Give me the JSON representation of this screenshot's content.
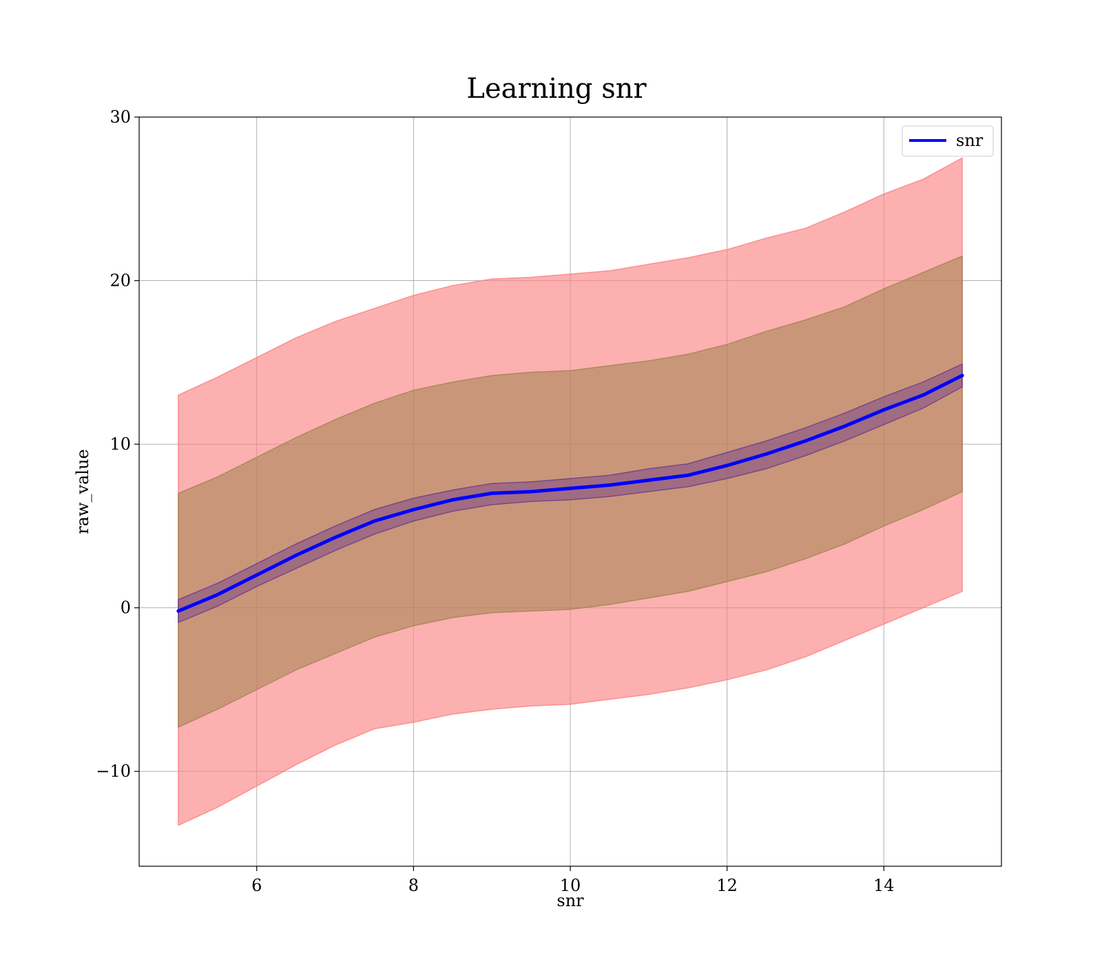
{
  "chart_data": {
    "type": "line",
    "title": "Learning snr",
    "xlabel": "snr",
    "ylabel": "raw_value",
    "xlim": [
      4.5,
      15.5
    ],
    "ylim": [
      -15.8,
      30
    ],
    "xticks": [
      6,
      8,
      10,
      12,
      14
    ],
    "yticks": [
      -10,
      0,
      10,
      20,
      30
    ],
    "xtick_labels": [
      "6",
      "8",
      "10",
      "12",
      "14"
    ],
    "ytick_labels": [
      "−10",
      "0",
      "10",
      "20",
      "30"
    ],
    "grid": true,
    "legend": {
      "location": "top-right",
      "entries": [
        "snr"
      ]
    },
    "x": [
      5,
      5.5,
      6,
      6.5,
      7,
      7.5,
      8,
      8.5,
      9,
      9.5,
      10,
      10.5,
      11,
      11.5,
      12,
      12.5,
      13,
      13.5,
      14,
      14.5,
      15
    ],
    "series": [
      {
        "name": "snr",
        "color": "#0000ff",
        "values": [
          -0.2,
          0.8,
          2.0,
          3.2,
          4.3,
          5.3,
          6.0,
          6.6,
          7.0,
          7.1,
          7.3,
          7.5,
          7.8,
          8.1,
          8.7,
          9.4,
          10.2,
          11.1,
          12.1,
          13.0,
          14.2
        ]
      }
    ],
    "bands": [
      {
        "color": "#fa8080",
        "lower": [
          -13.3,
          -12.2,
          -10.9,
          -9.6,
          -8.4,
          -7.4,
          -7.0,
          -6.5,
          -6.2,
          -6.0,
          -5.9,
          -5.6,
          -5.3,
          -4.9,
          -4.4,
          -3.8,
          -3.0,
          -2.0,
          -1.0,
          0.0,
          1.0
        ],
        "upper": [
          13.0,
          14.1,
          15.3,
          16.5,
          17.5,
          18.3,
          19.1,
          19.7,
          20.1,
          20.2,
          20.4,
          20.6,
          21.0,
          21.4,
          21.9,
          22.6,
          23.2,
          24.2,
          25.3,
          26.2,
          27.5
        ]
      },
      {
        "color": "#a0824e",
        "lower": [
          -7.3,
          -6.2,
          -5.0,
          -3.8,
          -2.8,
          -1.8,
          -1.1,
          -0.6,
          -0.3,
          -0.2,
          -0.1,
          0.2,
          0.6,
          1.0,
          1.6,
          2.2,
          3.0,
          3.9,
          5.0,
          6.0,
          7.1
        ],
        "upper": [
          7.0,
          8.0,
          9.2,
          10.4,
          11.5,
          12.5,
          13.3,
          13.8,
          14.2,
          14.4,
          14.5,
          14.8,
          15.1,
          15.5,
          16.1,
          16.9,
          17.6,
          18.4,
          19.5,
          20.5,
          21.5
        ]
      },
      {
        "color": "#6a3a8a",
        "lower": [
          -0.9,
          0.1,
          1.3,
          2.4,
          3.5,
          4.5,
          5.3,
          5.9,
          6.3,
          6.5,
          6.6,
          6.8,
          7.1,
          7.4,
          7.9,
          8.5,
          9.3,
          10.2,
          11.2,
          12.2,
          13.5
        ],
        "upper": [
          0.5,
          1.5,
          2.7,
          3.9,
          5.0,
          6.0,
          6.7,
          7.2,
          7.6,
          7.7,
          7.9,
          8.1,
          8.5,
          8.8,
          9.5,
          10.2,
          11.0,
          11.9,
          12.9,
          13.8,
          14.9
        ]
      }
    ]
  }
}
